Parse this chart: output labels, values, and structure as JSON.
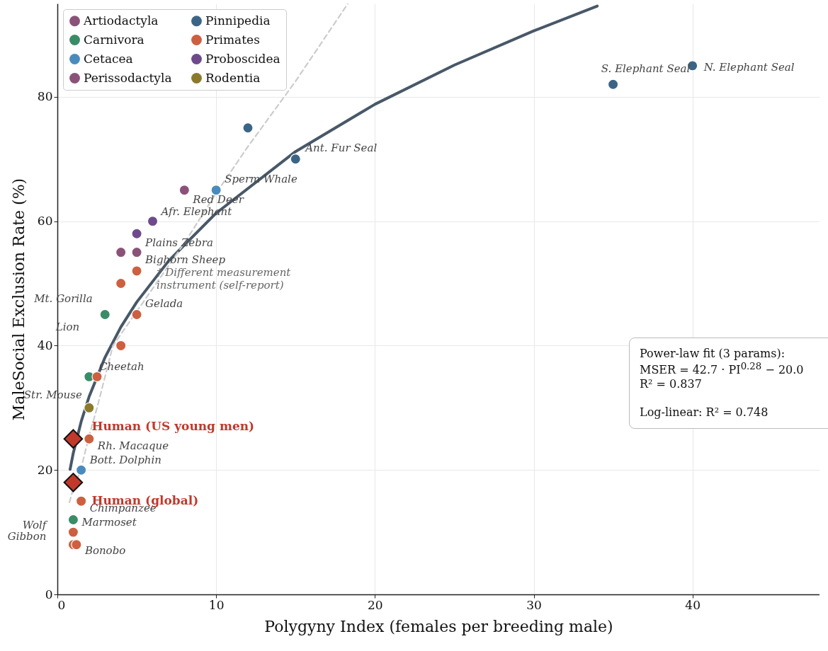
{
  "chart_data": {
    "type": "scatter",
    "xlabel": "Polygyny Index (females per breeding male)",
    "ylabel": "MaleSocial Exclusion Rate (%)",
    "xlim": [
      0,
      48
    ],
    "ylim": [
      0,
      95
    ],
    "xticks": [
      0,
      10,
      20,
      30,
      40
    ],
    "yticks": [
      0,
      20,
      40,
      60,
      80
    ],
    "grid": true,
    "legend": "top left",
    "marker": "circle",
    "series": [
      {
        "name": "Artiodactyla",
        "color": "#8b5279",
        "x": [
          8,
          5
        ],
        "values": [
          65,
          55
        ]
      },
      {
        "name": "Carnivora",
        "color": "#3a8c66",
        "x": [
          3,
          2,
          1
        ],
        "values": [
          45,
          35,
          12
        ]
      },
      {
        "name": "Cetacea",
        "color": "#4a8bbd",
        "x": [
          10,
          1.5
        ],
        "values": [
          65,
          20
        ]
      },
      {
        "name": "Perissodactyla",
        "color": "#8b5279",
        "x": [
          4
        ],
        "values": [
          55
        ]
      },
      {
        "name": "Pinnipedia",
        "color": "#3b6586",
        "x": [
          12,
          15,
          35,
          40
        ],
        "values": [
          75,
          70,
          82,
          85
        ]
      },
      {
        "name": "Primates",
        "color": "#cc6040",
        "x": [
          4,
          5,
          5,
          4,
          2.5,
          2,
          1.5,
          1,
          1,
          1.2
        ],
        "values": [
          50,
          52,
          45,
          40,
          35,
          25,
          15,
          10,
          8,
          8
        ]
      },
      {
        "name": "Proboscidea",
        "color": "#6e4a8c",
        "x": [
          6,
          5
        ],
        "values": [
          60,
          58
        ]
      },
      {
        "name": "Rodentia",
        "color": "#8c7a2c",
        "x": [
          2
        ],
        "values": [
          30
        ]
      },
      {
        "type": "scatter",
        "marker": "diamond",
        "color": "#c0392b",
        "x": [
          1,
          1
        ],
        "values": [
          25,
          18
        ]
      },
      {
        "type": "line",
        "marker": "none",
        "color": "#485868",
        "x": [
          0.8,
          1,
          1.5,
          2,
          3,
          4,
          5,
          7,
          10,
          15,
          20,
          25,
          30,
          34
        ],
        "values": [
          20.1,
          22.7,
          27.8,
          31.8,
          38.1,
          43,
          47,
          53.6,
          61.3,
          71.2,
          78.8,
          85.1,
          90.6,
          94.6
        ]
      },
      {
        "type": "line",
        "marker": "none",
        "line_style": "dashed",
        "color": "#cccccc",
        "x": [
          0.76,
          1,
          1.47,
          2,
          2.5,
          3.5,
          5,
          8,
          10,
          12,
          15,
          18.3
        ],
        "values": [
          14.8,
          17,
          20,
          25.5,
          30,
          40,
          45.5,
          56.5,
          64.5,
          72,
          82.5,
          95
        ]
      }
    ],
    "annotations": [
      {
        "text": "N. Elephant Seal",
        "x": 40,
        "y": 85
      },
      {
        "text": "S. Elephant Seal",
        "x": 35,
        "y": 82
      },
      {
        "text": "Ant. Fur Seal",
        "x": 15,
        "y": 70
      },
      {
        "text": "Sperm Whale",
        "x": 10,
        "y": 65
      },
      {
        "text": "Red Deer",
        "x": 8,
        "y": 65
      },
      {
        "text": "Afr. Elephant",
        "x": 6,
        "y": 60
      },
      {
        "text": "Plains Zebra",
        "x": 5,
        "y": 58
      },
      {
        "text": "Bighorn Sheep",
        "x": 5,
        "y": 55
      },
      {
        "text": "Mt. Gorilla",
        "x": 4,
        "y": 50
      },
      {
        "text": "Gelada",
        "x": 5,
        "y": 45
      },
      {
        "text": "Lion",
        "x": 3,
        "y": 45
      },
      {
        "text": "Cheetah",
        "x": 2.5,
        "y": 35
      },
      {
        "text": "Str. Mouse",
        "x": 2,
        "y": 30
      },
      {
        "text": "Rh. Macaque",
        "x": 2,
        "y": 25
      },
      {
        "text": "Bott. Dolphin",
        "x": 1.5,
        "y": 20
      },
      {
        "text": "Chimpanzee",
        "x": 1.5,
        "y": 15
      },
      {
        "text": "Wolf",
        "x": 1,
        "y": 12
      },
      {
        "text": "Marmoset",
        "x": 1,
        "y": 10
      },
      {
        "text": "Gibbon",
        "x": 1,
        "y": 8
      },
      {
        "text": "Bonobo",
        "x": 1.2,
        "y": 8
      },
      {
        "text": "Human (US young men)",
        "x": 1,
        "y": 25
      },
      {
        "text": "Human (global)",
        "x": 1,
        "y": 18
      },
      "† Different measurement\ninstrument (self-report)",
      "Power-law fit (3 params):",
      "MSER = 42.7 · PI$^{0.28}$ − 20.0",
      "R² = 0.837",
      "Log-linear: R² = 0.748"
    ]
  }
}
